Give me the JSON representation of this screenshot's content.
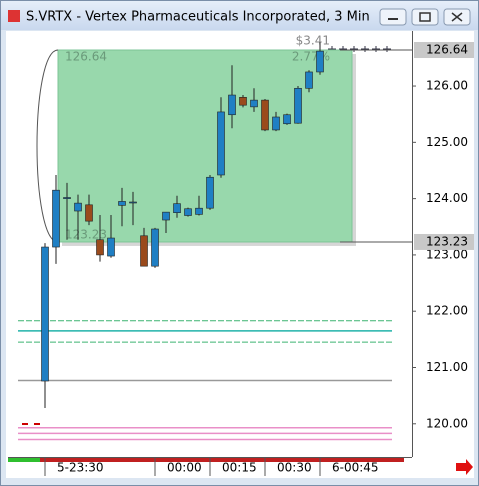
{
  "window": {
    "title": "S.VRTX - Vertex Pharmaceuticals Incorporated, 3 Min"
  },
  "chart_data": {
    "type": "candlestick",
    "open": [
      120.76,
      123.14,
      124.0,
      123.78,
      123.89,
      123.27,
      122.98,
      123.88,
      123.93,
      123.34,
      122.8,
      123.62,
      123.75,
      123.7,
      123.72,
      123.83,
      124.42,
      125.49,
      125.8,
      125.63,
      125.75,
      125.22,
      125.33,
      125.34,
      125.96,
      126.25
    ],
    "high": [
      123.21,
      124.42,
      124.28,
      124.07,
      124.07,
      123.71,
      123.71,
      124.19,
      124.12,
      123.48,
      123.48,
      123.76,
      124.05,
      123.84,
      124.05,
      124.42,
      125.8,
      126.37,
      125.84,
      125.96,
      125.77,
      125.54,
      125.51,
      126.0,
      126.28,
      126.78
    ],
    "low": [
      120.28,
      122.84,
      123.27,
      123.27,
      123.53,
      122.88,
      122.95,
      123.51,
      123.53,
      122.8,
      122.77,
      123.39,
      123.66,
      123.68,
      123.7,
      123.8,
      124.37,
      125.25,
      125.62,
      125.54,
      125.2,
      125.2,
      125.31,
      125.33,
      125.89,
      126.2
    ],
    "close": [
      123.14,
      124.15,
      124.02,
      123.92,
      123.6,
      123.0,
      123.3,
      123.95,
      123.94,
      122.8,
      123.46,
      123.76,
      123.91,
      123.82,
      123.83,
      124.38,
      125.54,
      125.84,
      125.66,
      125.75,
      125.22,
      125.45,
      125.49,
      125.96,
      126.25,
      126.62
    ],
    "up_color": "#1f7fc4",
    "down_color": "#9a4a1c",
    "ylim": [
      119.41,
      126.96
    ],
    "yticks": [
      {
        "value": 126,
        "label": "126.00"
      },
      {
        "value": 125,
        "label": "125.00"
      },
      {
        "value": 124,
        "label": "124.00"
      },
      {
        "value": 123,
        "label": "123.00"
      },
      {
        "value": 122,
        "label": "122.00"
      },
      {
        "value": 121,
        "label": "121.00"
      },
      {
        "value": 120,
        "label": "120.00"
      }
    ],
    "xticks": [
      {
        "value": 0,
        "label": "5-23:30"
      },
      {
        "value": 10,
        "label": "00:00"
      },
      {
        "value": 15,
        "label": "00:15"
      },
      {
        "value": 20,
        "label": "00:30"
      },
      {
        "value": 25,
        "label": "6-00:45"
      }
    ],
    "box": {
      "top": 126.64,
      "bottom": 123.23,
      "change": {
        "value": 3.41,
        "label": "$3.41"
      },
      "percent": {
        "value": 2.77,
        "label": "2.77%"
      }
    },
    "price_labels": [
      126.64,
      123.23
    ],
    "levels": [
      {
        "value": 121.83,
        "color": "#3cb371",
        "dash": true
      },
      {
        "value": 121.65,
        "color": "#20b2aa",
        "dash": false
      },
      {
        "value": 121.45,
        "color": "#3cb371",
        "dash": true
      },
      {
        "value": 120.77,
        "color": "#999999",
        "dash": false
      },
      {
        "value": 119.93,
        "color": "#e98fc8",
        "dash": false
      },
      {
        "value": 119.83,
        "color": "#e98fc8",
        "dash": false
      },
      {
        "value": 119.72,
        "color": "#e98fc8",
        "dash": false
      }
    ]
  }
}
